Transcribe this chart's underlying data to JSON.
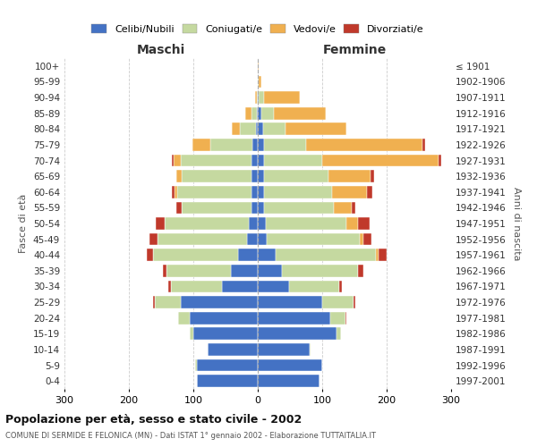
{
  "age_groups": [
    "0-4",
    "5-9",
    "10-14",
    "15-19",
    "20-24",
    "25-29",
    "30-34",
    "35-39",
    "40-44",
    "45-49",
    "50-54",
    "55-59",
    "60-64",
    "65-69",
    "70-74",
    "75-79",
    "80-84",
    "85-89",
    "90-94",
    "95-99",
    "100+"
  ],
  "birth_years": [
    "1997-2001",
    "1992-1996",
    "1987-1991",
    "1982-1986",
    "1977-1981",
    "1972-1976",
    "1967-1971",
    "1962-1966",
    "1957-1961",
    "1952-1956",
    "1947-1951",
    "1942-1946",
    "1937-1941",
    "1932-1936",
    "1927-1931",
    "1922-1926",
    "1917-1921",
    "1912-1916",
    "1907-1911",
    "1902-1906",
    "≤ 1901"
  ],
  "maschi_celibi": [
    95,
    95,
    78,
    100,
    105,
    120,
    55,
    42,
    30,
    16,
    14,
    10,
    10,
    10,
    10,
    8,
    3,
    2,
    0,
    0,
    0
  ],
  "maschi_coniugati": [
    0,
    2,
    0,
    5,
    18,
    40,
    80,
    100,
    132,
    140,
    130,
    108,
    115,
    108,
    110,
    65,
    25,
    8,
    2,
    0,
    0
  ],
  "maschi_vedovi": [
    0,
    0,
    0,
    0,
    0,
    0,
    0,
    0,
    0,
    0,
    0,
    0,
    4,
    8,
    10,
    28,
    12,
    10,
    2,
    0,
    0
  ],
  "maschi_divorziati": [
    0,
    0,
    0,
    0,
    0,
    2,
    4,
    5,
    10,
    12,
    15,
    8,
    5,
    0,
    3,
    0,
    0,
    0,
    0,
    0,
    0
  ],
  "femmine_celibi": [
    96,
    100,
    80,
    122,
    112,
    100,
    48,
    38,
    28,
    14,
    12,
    10,
    10,
    10,
    10,
    10,
    8,
    5,
    2,
    0,
    0
  ],
  "femmine_coniugati": [
    0,
    0,
    2,
    7,
    24,
    48,
    78,
    118,
    155,
    145,
    125,
    108,
    105,
    100,
    90,
    65,
    35,
    20,
    8,
    2,
    0
  ],
  "femmine_vedovi": [
    0,
    0,
    0,
    0,
    0,
    0,
    0,
    0,
    5,
    5,
    18,
    28,
    55,
    65,
    180,
    180,
    95,
    80,
    55,
    3,
    2
  ],
  "femmine_divorziati": [
    0,
    0,
    0,
    0,
    2,
    3,
    5,
    8,
    12,
    12,
    18,
    5,
    8,
    5,
    5,
    5,
    0,
    0,
    0,
    0,
    0
  ],
  "color_celibi": "#4472c4",
  "color_coniugati": "#c5d9a0",
  "color_vedovi": "#f0b050",
  "color_divorziati": "#c0392b",
  "title": "Popolazione per età, sesso e stato civile - 2002",
  "subtitle": "COMUNE DI SERMIDE E FELONICA (MN) - Dati ISTAT 1° gennaio 2002 - Elaborazione TUTTAITALIA.IT",
  "xlabel_left": "Maschi",
  "xlabel_right": "Femmine",
  "ylabel_left": "Fasce di età",
  "ylabel_right": "Anni di nascita",
  "xlim": 300,
  "background_color": "#ffffff",
  "grid_color": "#cccccc"
}
